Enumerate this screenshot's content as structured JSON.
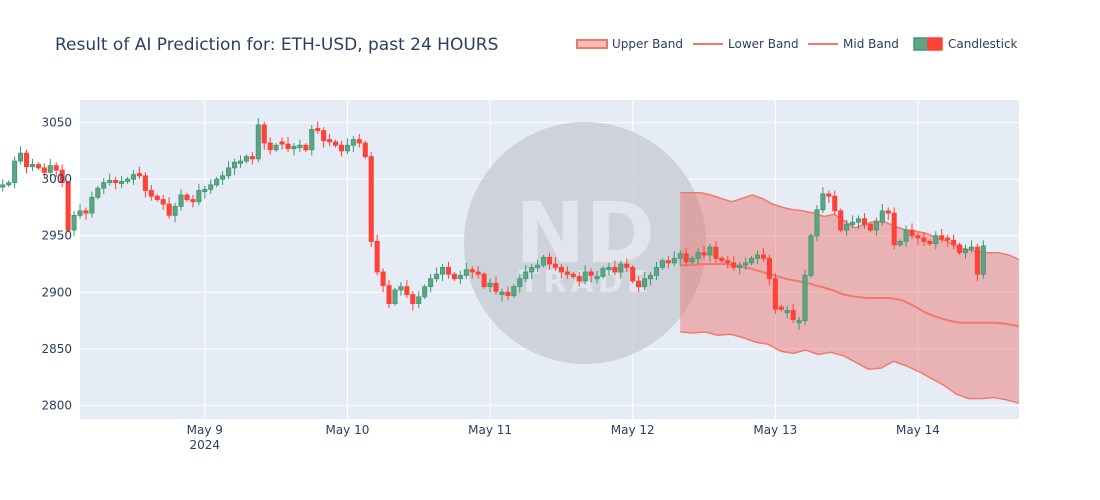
{
  "chart_data": {
    "type": "candlestick",
    "title": "Result of AI Prediction for: ETH-USD, past 24 HOURS",
    "xlabel": "",
    "ylabel": "",
    "ylim": [
      2788,
      3070
    ],
    "x_range_hours": [
      -21,
      137
    ],
    "yticks": [
      2800,
      2850,
      2900,
      2950,
      3000,
      3050
    ],
    "xticks": [
      {
        "label": "May 9",
        "sub": "2024",
        "hour": 0
      },
      {
        "label": "May 10",
        "sub": "",
        "hour": 24
      },
      {
        "label": "May 11",
        "sub": "",
        "hour": 48
      },
      {
        "label": "May 12",
        "sub": "",
        "hour": 72
      },
      {
        "label": "May 13",
        "sub": "",
        "hour": 96
      },
      {
        "label": "May 14",
        "sub": "",
        "hour": 120
      }
    ],
    "legend": {
      "placement": "top-right",
      "items": [
        {
          "name": "Upper Band",
          "kind": "fill"
        },
        {
          "name": "Lower Band",
          "kind": "line"
        },
        {
          "name": "Mid Band",
          "kind": "line"
        },
        {
          "name": "Candlestick",
          "kind": "candle"
        }
      ]
    },
    "colors": {
      "background": "#e5ecf6",
      "grid": "#ffffff",
      "up": "#3d9970",
      "up_fill": "#5fa384",
      "down": "#ff4136",
      "band_line": "#f4776b",
      "band_fill": "rgba(239,100,90,0.42)"
    },
    "watermark": {
      "letters": "ND",
      "sub": "TRADE"
    },
    "candle_close": [
      3018,
      3022,
      3027,
      3025,
      3030,
      3018,
      3012,
      3020,
      3000,
      2994,
      2995,
      2994,
      3001,
      2996,
      2995,
      2997,
      3016,
      3023,
      3011,
      3013,
      3010,
      3006,
      3012,
      3008,
      2997,
      2955,
      2968,
      2972,
      2970,
      2984,
      2992,
      2997,
      2999,
      2997,
      2998,
      3000,
      3004,
      3003,
      2990,
      2985,
      2982,
      2978,
      2968,
      2976,
      2986,
      2982,
      2980,
      2990,
      2991,
      2995,
      3000,
      3003,
      3010,
      3015,
      3016,
      3020,
      3018,
      3048,
      3032,
      3026,
      3030,
      3031,
      3027,
      3029,
      3030,
      3026,
      3044,
      3043,
      3034,
      3033,
      3030,
      3025,
      3030,
      3035,
      3032,
      3020,
      2945,
      2918,
      2906,
      2890,
      2902,
      2905,
      2898,
      2890,
      2896,
      2905,
      2912,
      2916,
      2922,
      2916,
      2912,
      2915,
      2920,
      2918,
      2916,
      2905,
      2908,
      2901,
      2900,
      2897,
      2905,
      2912,
      2918,
      2922,
      2924,
      2931,
      2925,
      2922,
      2918,
      2916,
      2914,
      2910,
      2918,
      2915,
      2914,
      2921,
      2922,
      2918,
      2925,
      2922,
      2910,
      2905,
      2912,
      2915,
      2922,
      2928,
      2926,
      2930,
      2934,
      2927,
      2930,
      2935,
      2933,
      2940,
      2930,
      2928,
      2926,
      2922,
      2924,
      2926,
      2930,
      2933,
      2930,
      2912,
      2885,
      2885,
      2884,
      2876,
      2875,
      2915,
      2950,
      2973,
      2987,
      2985,
      2972,
      2955,
      2960,
      2962,
      2965,
      2960,
      2955,
      2962,
      2972,
      2970,
      2942,
      2945,
      2955,
      2950,
      2948,
      2945,
      2943,
      2950,
      2947,
      2946,
      2942,
      2935,
      2938,
      2940,
      2916,
      2941
    ],
    "upper_band": [
      2988,
      2988,
      2988,
      2986,
      2983,
      2980,
      2983,
      2986,
      2983,
      2978,
      2975,
      2973,
      2972,
      2970,
      2967,
      2969,
      2963,
      2957,
      2960,
      2963,
      2962,
      2958,
      2955,
      2954,
      2952,
      2948,
      2945,
      2940,
      2938,
      2936,
      2935,
      2935,
      2933,
      2929
    ],
    "mid_band": [
      2924,
      2924,
      2925,
      2925,
      2925,
      2923,
      2921,
      2918,
      2915,
      2912,
      2910,
      2908,
      2905,
      2902,
      2898,
      2896,
      2895,
      2895,
      2895,
      2893,
      2888,
      2882,
      2878,
      2875,
      2873,
      2873,
      2873,
      2873,
      2872,
      2870
    ],
    "lower_band": [
      2865,
      2864,
      2865,
      2862,
      2863,
      2860,
      2856,
      2854,
      2848,
      2846,
      2849,
      2845,
      2847,
      2844,
      2838,
      2832,
      2833,
      2839,
      2835,
      2830,
      2824,
      2818,
      2810,
      2806,
      2806,
      2807,
      2805,
      2802
    ]
  }
}
